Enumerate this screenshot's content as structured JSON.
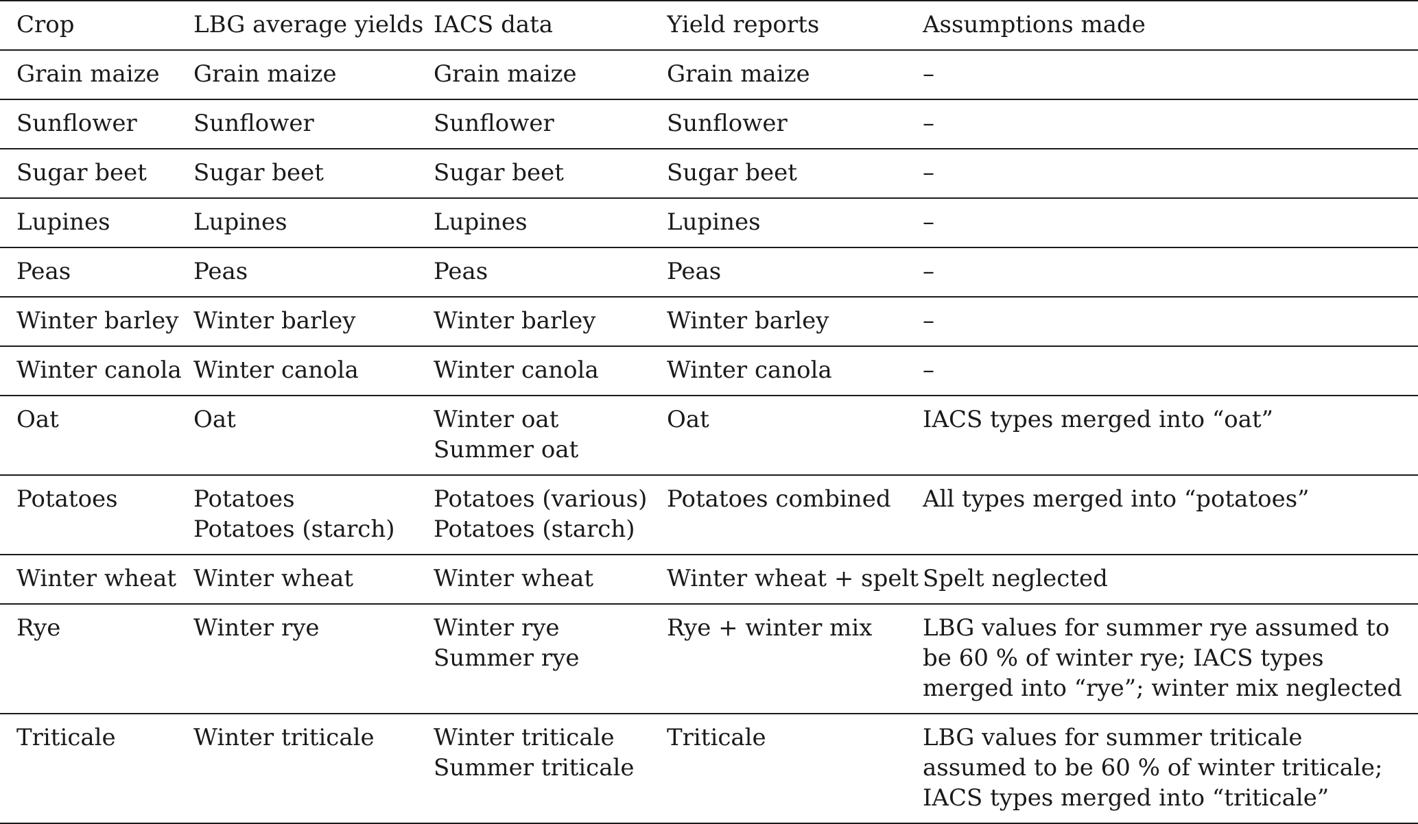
{
  "columns": [
    "Crop",
    "LBG average yields",
    "IACS data",
    "Yield reports",
    "Assumptions made"
  ],
  "rows": [
    {
      "crop": "Grain maize",
      "lbg": [
        "Grain maize"
      ],
      "iacs": [
        "Grain maize"
      ],
      "reports": "Grain maize",
      "assumptions": "–"
    },
    {
      "crop": "Sunflower",
      "lbg": [
        "Sunflower"
      ],
      "iacs": [
        "Sunflower"
      ],
      "reports": "Sunflower",
      "assumptions": "–"
    },
    {
      "crop": "Sugar beet",
      "lbg": [
        "Sugar beet"
      ],
      "iacs": [
        "Sugar beet"
      ],
      "reports": "Sugar beet",
      "assumptions": "–"
    },
    {
      "crop": "Lupines",
      "lbg": [
        "Lupines"
      ],
      "iacs": [
        "Lupines"
      ],
      "reports": "Lupines",
      "assumptions": "–"
    },
    {
      "crop": "Peas",
      "lbg": [
        "Peas"
      ],
      "iacs": [
        "Peas"
      ],
      "reports": "Peas",
      "assumptions": "–"
    },
    {
      "crop": "Winter barley",
      "lbg": [
        "Winter barley"
      ],
      "iacs": [
        "Winter barley"
      ],
      "reports": "Winter barley",
      "assumptions": "–"
    },
    {
      "crop": "Winter canola",
      "lbg": [
        "Winter canola"
      ],
      "iacs": [
        "Winter canola"
      ],
      "reports": "Winter canola",
      "assumptions": "–"
    },
    {
      "crop": "Oat",
      "lbg": [
        "Oat"
      ],
      "iacs": [
        "Winter oat",
        "Summer oat"
      ],
      "reports": "Oat",
      "assumptions": "IACS types merged into “oat”"
    },
    {
      "crop": "Potatoes",
      "lbg": [
        "Potatoes",
        "Potatoes (starch)"
      ],
      "iacs": [
        "Potatoes (various)",
        "Potatoes (starch)"
      ],
      "reports": "Potatoes combined",
      "assumptions": "All types merged into “potatoes”"
    },
    {
      "crop": "Winter wheat",
      "lbg": [
        "Winter wheat"
      ],
      "iacs": [
        "Winter wheat"
      ],
      "reports": "Winter wheat + spelt",
      "assumptions": "Spelt neglected"
    },
    {
      "crop": "Rye",
      "lbg": [
        "Winter rye"
      ],
      "iacs": [
        "Winter rye",
        "Summer rye"
      ],
      "reports": "Rye + winter mix",
      "assumptions": "LBG values for summer rye assumed to be 60 % of winter rye; IACS types merged into “rye”; winter mix neglected"
    },
    {
      "crop": "Triticale",
      "lbg": [
        "Winter triticale"
      ],
      "iacs": [
        "Winter triticale",
        "Summer triticale"
      ],
      "reports": "Triticale",
      "assumptions": "LBG values for summer triticale assumed to be 60 % of winter triticale; IACS types merged into “triticale”"
    }
  ]
}
